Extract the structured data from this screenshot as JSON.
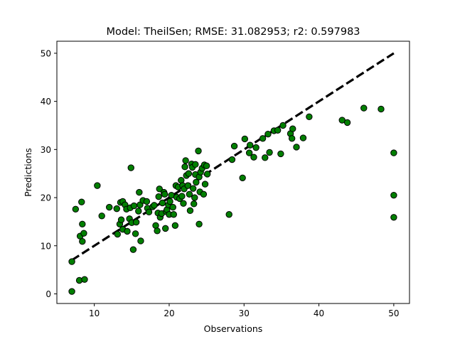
{
  "chart_data": {
    "type": "scatter",
    "title": "Model: TheilSen; RMSE: 31.082953; r2: 0.597983",
    "xlabel": "Observations",
    "ylabel": "Predictions",
    "xlim": [
      5,
      52.1
    ],
    "ylim": [
      -2,
      52.5
    ],
    "xticks": [
      10,
      20,
      30,
      40,
      50
    ],
    "yticks": [
      0,
      10,
      20,
      30,
      40,
      50
    ],
    "marker_color": "#007f00",
    "marker_edge": "#000000",
    "identity_line": {
      "x": [
        7.0,
        50.0
      ],
      "y": [
        7.0,
        50.0
      ],
      "color": "#000000",
      "style": "dashed"
    },
    "points": [
      [
        7.0,
        0.5
      ],
      [
        7.0,
        6.7
      ],
      [
        7.5,
        17.6
      ],
      [
        8.0,
        2.8
      ],
      [
        8.1,
        12.0
      ],
      [
        8.3,
        19.1
      ],
      [
        8.4,
        14.5
      ],
      [
        8.4,
        10.9
      ],
      [
        8.6,
        12.6
      ],
      [
        8.7,
        3.0
      ],
      [
        10.4,
        22.5
      ],
      [
        11.0,
        16.2
      ],
      [
        12.0,
        18.0
      ],
      [
        13.0,
        17.7
      ],
      [
        13.1,
        12.4
      ],
      [
        13.4,
        14.5
      ],
      [
        13.5,
        19.0
      ],
      [
        13.6,
        15.4
      ],
      [
        13.8,
        19.2
      ],
      [
        13.8,
        13.4
      ],
      [
        14.1,
        18.5
      ],
      [
        14.3,
        17.6
      ],
      [
        14.4,
        13.0
      ],
      [
        14.7,
        15.6
      ],
      [
        14.8,
        17.9
      ],
      [
        14.9,
        26.2
      ],
      [
        15.0,
        14.8
      ],
      [
        15.2,
        9.2
      ],
      [
        15.3,
        18.3
      ],
      [
        15.5,
        12.5
      ],
      [
        15.6,
        14.9
      ],
      [
        15.9,
        17.2
      ],
      [
        16.0,
        21.1
      ],
      [
        16.1,
        18.5
      ],
      [
        16.2,
        11.0
      ],
      [
        16.5,
        19.4
      ],
      [
        17.0,
        19.2
      ],
      [
        17.1,
        17.8
      ],
      [
        17.3,
        17.0
      ],
      [
        17.8,
        18.1
      ],
      [
        18.0,
        18.4
      ],
      [
        18.2,
        14.2
      ],
      [
        18.4,
        13.1
      ],
      [
        18.5,
        16.8
      ],
      [
        18.6,
        20.2
      ],
      [
        18.7,
        21.8
      ],
      [
        18.8,
        15.9
      ],
      [
        19.0,
        16.7
      ],
      [
        19.1,
        18.9
      ],
      [
        19.3,
        21.1
      ],
      [
        19.4,
        20.7
      ],
      [
        19.5,
        13.6
      ],
      [
        19.6,
        17.1
      ],
      [
        19.7,
        17.5
      ],
      [
        19.9,
        18.5
      ],
      [
        20.0,
        16.5
      ],
      [
        20.1,
        19.2
      ],
      [
        20.3,
        20.5
      ],
      [
        20.5,
        18.0
      ],
      [
        20.6,
        16.5
      ],
      [
        20.8,
        14.2
      ],
      [
        20.9,
        22.5
      ],
      [
        21.0,
        20.1
      ],
      [
        21.2,
        22.2
      ],
      [
        21.4,
        19.8
      ],
      [
        21.6,
        23.6
      ],
      [
        21.7,
        20.3
      ],
      [
        21.8,
        22.5
      ],
      [
        21.9,
        18.8
      ],
      [
        22.0,
        21.8
      ],
      [
        22.1,
        26.4
      ],
      [
        22.2,
        27.7
      ],
      [
        22.3,
        24.6
      ],
      [
        22.5,
        22.5
      ],
      [
        22.6,
        25.0
      ],
      [
        22.7,
        20.7
      ],
      [
        22.8,
        17.3
      ],
      [
        23.0,
        27.0
      ],
      [
        23.1,
        26.3
      ],
      [
        23.2,
        21.9
      ],
      [
        23.3,
        18.7
      ],
      [
        23.4,
        20.0
      ],
      [
        23.5,
        24.8
      ],
      [
        23.6,
        23.2
      ],
      [
        23.9,
        29.7
      ],
      [
        24.0,
        24.3
      ],
      [
        24.1,
        21.2
      ],
      [
        24.2,
        25.3
      ],
      [
        24.4,
        26.1
      ],
      [
        24.6,
        20.7
      ],
      [
        24.7,
        26.8
      ],
      [
        24.8,
        22.8
      ],
      [
        25.0,
        26.6
      ],
      [
        25.1,
        24.9
      ],
      [
        24.0,
        14.5
      ],
      [
        23.5,
        26.9
      ],
      [
        28.0,
        16.5
      ],
      [
        28.4,
        27.9
      ],
      [
        28.7,
        30.7
      ],
      [
        29.8,
        24.1
      ],
      [
        30.1,
        32.2
      ],
      [
        30.7,
        29.3
      ],
      [
        30.8,
        30.9
      ],
      [
        31.3,
        28.4
      ],
      [
        31.6,
        30.4
      ],
      [
        32.5,
        32.3
      ],
      [
        32.8,
        28.3
      ],
      [
        33.2,
        33.2
      ],
      [
        33.4,
        29.4
      ],
      [
        34.0,
        33.9
      ],
      [
        34.5,
        34.0
      ],
      [
        34.9,
        29.1
      ],
      [
        35.2,
        35.0
      ],
      [
        36.2,
        33.3
      ],
      [
        36.4,
        32.3
      ],
      [
        36.5,
        34.3
      ],
      [
        37.0,
        30.5
      ],
      [
        37.9,
        32.4
      ],
      [
        38.7,
        36.8
      ],
      [
        43.1,
        36.1
      ],
      [
        43.8,
        35.6
      ],
      [
        46.0,
        38.6
      ],
      [
        48.3,
        38.4
      ],
      [
        50.0,
        29.3
      ],
      [
        50.0,
        20.5
      ],
      [
        50.0,
        15.9
      ]
    ]
  }
}
